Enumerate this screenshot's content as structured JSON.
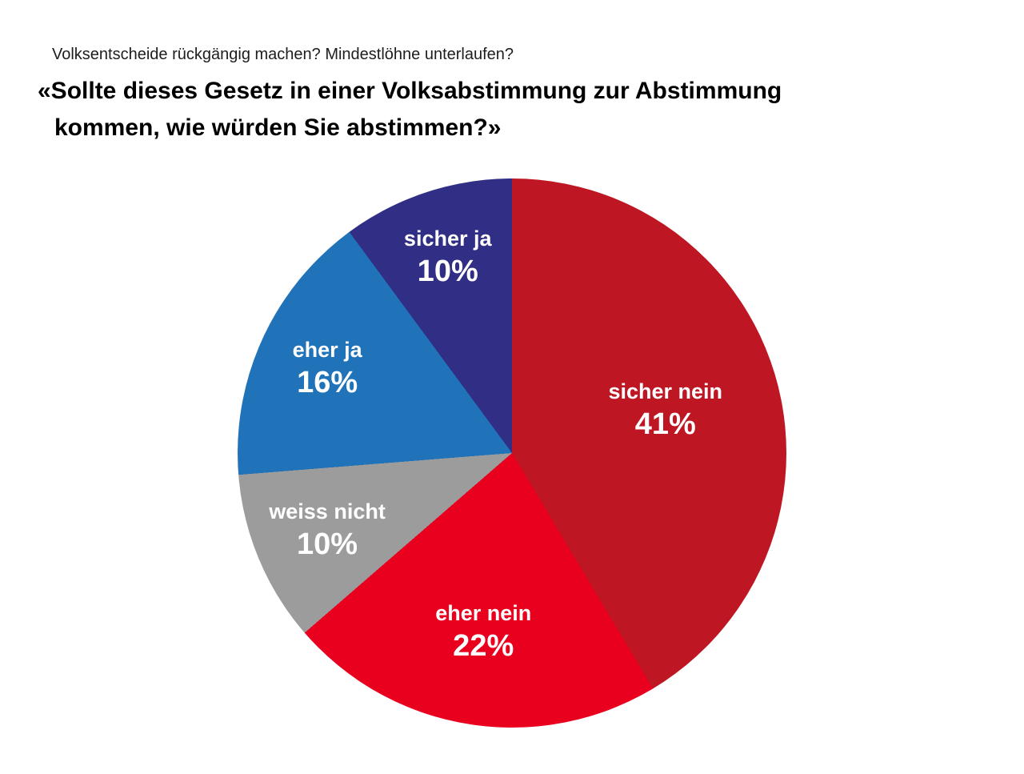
{
  "header": {
    "subtitle": "Volksentscheide rückgängig machen? Mindestlöhne unterlaufen?",
    "title_lines": [
      "«Sollte dieses Gesetz in einer Volksabstimmung zur Abstimmung",
      "kommen, wie würden Sie abstimmen?»"
    ]
  },
  "chart_data": {
    "type": "pie",
    "title": "«Sollte dieses Gesetz in einer Volksabstimmung zur Abstimmung kommen, wie würden Sie abstimmen?»",
    "subtitle": "Volksentscheide rückgängig machen? Mindestlöhne unterlaufen?",
    "start_angle_deg": 0,
    "direction": "clockwise",
    "total_pct": 99,
    "label_color": "#FFFFFF",
    "background": "#FFFFFF",
    "legend": "none",
    "slices": [
      {
        "label": "sicher nein",
        "value_pct": 41,
        "display": "41%",
        "color": "#BE1622",
        "label_radius": 0.58
      },
      {
        "label": "eher nein",
        "value_pct": 22,
        "display": "22%",
        "color": "#E8001E",
        "label_radius": 0.66
      },
      {
        "label": "weiss nicht",
        "value_pct": 10,
        "display": "10%",
        "color": "#9D9C9C",
        "label_radius": 0.73
      },
      {
        "label": "eher ja",
        "value_pct": 16,
        "display": "16%",
        "color": "#2173B9",
        "label_radius": 0.74
      },
      {
        "label": "sicher ja",
        "value_pct": 10,
        "display": "10%",
        "color": "#312E85",
        "label_radius": 0.75
      }
    ]
  }
}
